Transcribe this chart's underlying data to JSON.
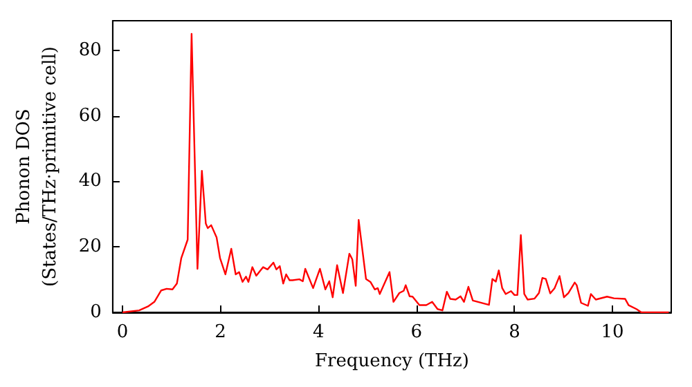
{
  "chart_data": {
    "type": "line",
    "xlabel": "Frequency (THz)",
    "ylabel": "Phonon DOS\n(States/THz·primitive cell)",
    "xlim": [
      -0.2,
      11.2
    ],
    "ylim": [
      0,
      89
    ],
    "xticks": [
      0,
      2,
      4,
      6,
      8,
      10
    ],
    "yticks": [
      0,
      20,
      40,
      60,
      80
    ],
    "grid": false,
    "marker": "none",
    "line_style": "solid",
    "series": [
      {
        "color": "#ff0000",
        "x": [
          0,
          0.34,
          0.52,
          0.65,
          0.79,
          0.9,
          1.02,
          1.11,
          1.2,
          1.33,
          1.41,
          1.53,
          1.62,
          1.7,
          1.74,
          1.81,
          1.92,
          1.99,
          2.1,
          2.22,
          2.31,
          2.38,
          2.45,
          2.52,
          2.57,
          2.65,
          2.73,
          2.87,
          2.96,
          3.08,
          3.14,
          3.21,
          3.28,
          3.34,
          3.41,
          3.47,
          3.61,
          3.68,
          3.73,
          3.89,
          4.03,
          4.14,
          4.22,
          4.29,
          4.38,
          4.5,
          4.63,
          4.69,
          4.76,
          4.82,
          4.97,
          5.06,
          5.15,
          5.21,
          5.25,
          5.45,
          5.53,
          5.65,
          5.74,
          5.78,
          5.86,
          5.92,
          6.06,
          6.2,
          6.32,
          6.43,
          6.53,
          6.62,
          6.69,
          6.8,
          6.9,
          6.97,
          7.06,
          7.15,
          7.48,
          7.55,
          7.62,
          7.68,
          7.75,
          7.82,
          7.93,
          8.0,
          8.06,
          8.13,
          8.2,
          8.27,
          8.41,
          8.5,
          8.57,
          8.64,
          8.73,
          8.82,
          8.92,
          9.01,
          9.1,
          9.23,
          9.27,
          9.36,
          9.5,
          9.56,
          9.66,
          9.89,
          10.03,
          10.26,
          10.33,
          10.49,
          10.59,
          11.15
        ],
        "values": [
          0,
          0.6,
          1.8,
          3.2,
          6.7,
          7.2,
          7,
          8.8,
          16.6,
          22.2,
          85,
          13.3,
          43.2,
          27.1,
          25.7,
          26.6,
          22.9,
          16.6,
          11.6,
          19.4,
          11.6,
          12.3,
          9.3,
          10.9,
          9.3,
          13.8,
          11.2,
          13.8,
          13.1,
          15.2,
          13.1,
          14.1,
          8.8,
          11.6,
          9.8,
          9.8,
          10.1,
          9.5,
          13.3,
          7.4,
          13.3,
          7,
          9.5,
          4.6,
          14.4,
          5.9,
          17.9,
          16.2,
          8.1,
          28.2,
          10.2,
          9.3,
          7,
          7.4,
          5.6,
          12.3,
          3.2,
          5.9,
          6.6,
          8.3,
          4.9,
          4.8,
          2.2,
          2.2,
          3.2,
          1,
          0.6,
          6.3,
          4.1,
          3.9,
          4.9,
          3.2,
          7.8,
          3.6,
          2.3,
          10.2,
          9.4,
          12.8,
          7.4,
          5.6,
          6.5,
          5.3,
          5.3,
          23.6,
          5.6,
          3.9,
          4.2,
          5.9,
          10.5,
          10.2,
          5.8,
          7.4,
          11.1,
          4.6,
          5.9,
          9.1,
          8.3,
          2.9,
          2,
          5.6,
          3.9,
          4.8,
          4.3,
          4.1,
          2.2,
          1,
          0,
          0
        ]
      }
    ]
  }
}
